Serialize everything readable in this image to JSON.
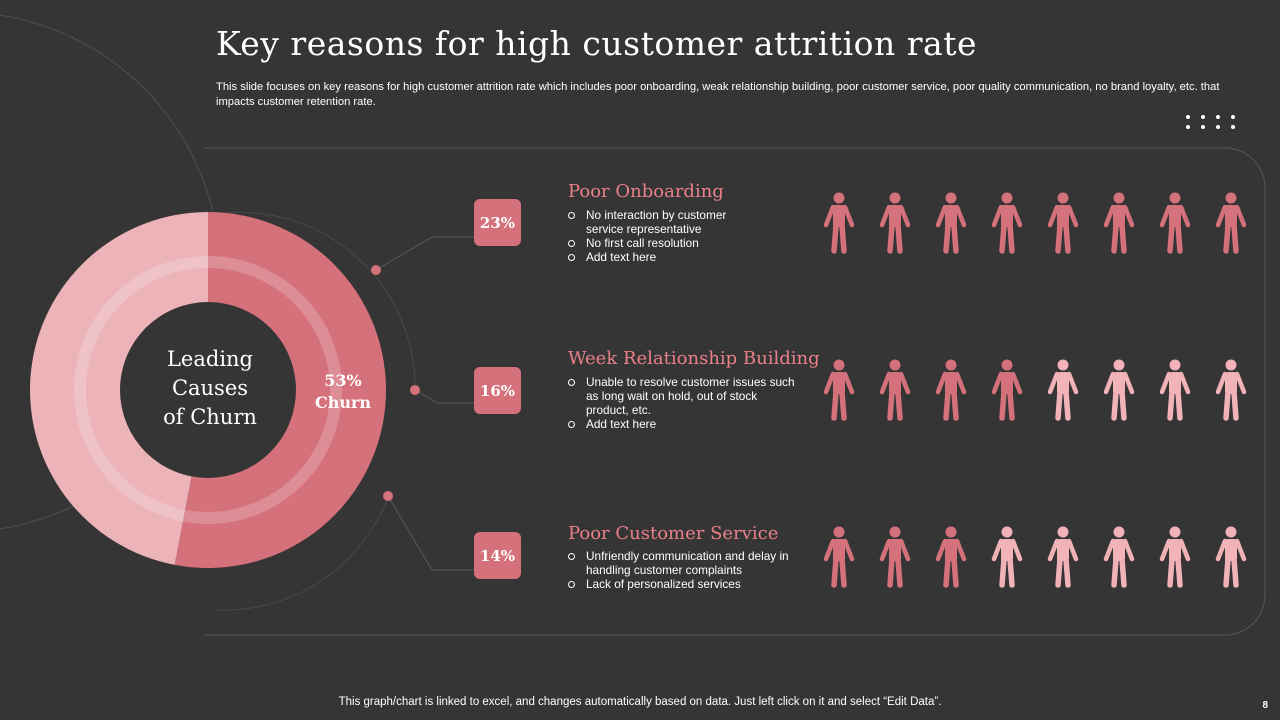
{
  "slide": {
    "title": "Key reasons for high customer attrition rate",
    "subtitle": "This slide focuses on key reasons for high customer attrition rate which includes poor onboarding, weak relationship building, poor customer service, poor quality communication, no brand loyalty, etc. that impacts customer retention rate.",
    "footer": "This graph/chart is linked to excel,  and changes automatically based on data. Just left click on it and select “Edit Data”.",
    "page_number": "8"
  },
  "colors": {
    "background": "#363536",
    "accent": "#d5717b",
    "accent_light": "#e98089",
    "light_pink": "#f1b2b8",
    "text": "#ffffff"
  },
  "chart_data": {
    "type": "pie",
    "center_label": [
      "Leading",
      "Causes",
      "of Churn"
    ],
    "slice_label": [
      "53%",
      "Churn"
    ],
    "slices": [
      {
        "label": "Churn",
        "value": 53,
        "color": "#d5717b"
      },
      {
        "label": "Remaining",
        "value": 47,
        "color": "#ecb3b9"
      }
    ]
  },
  "reasons": [
    {
      "percent_label": "23%",
      "title": "Poor Onboarding",
      "bullets": [
        "No interaction by customer service representative",
        "No first call resolution",
        "Add text here"
      ],
      "icons_total": 8,
      "icons_highlighted": 8
    },
    {
      "percent_label": "16%",
      "title": "Week Relationship Building",
      "bullets": [
        "Unable to resolve customer issues such as long wait on hold, out of stock product, etc.",
        "Add text here"
      ],
      "icons_total": 8,
      "icons_highlighted": 4
    },
    {
      "percent_label": "14%",
      "title": "Poor Customer Service",
      "bullets": [
        "Unfriendly communication and delay in handling customer complaints",
        "Lack of personalized services"
      ],
      "icons_total": 8,
      "icons_highlighted": 3
    }
  ],
  "icons": {
    "person": "person-icon",
    "menu": "dots-menu-icon"
  }
}
